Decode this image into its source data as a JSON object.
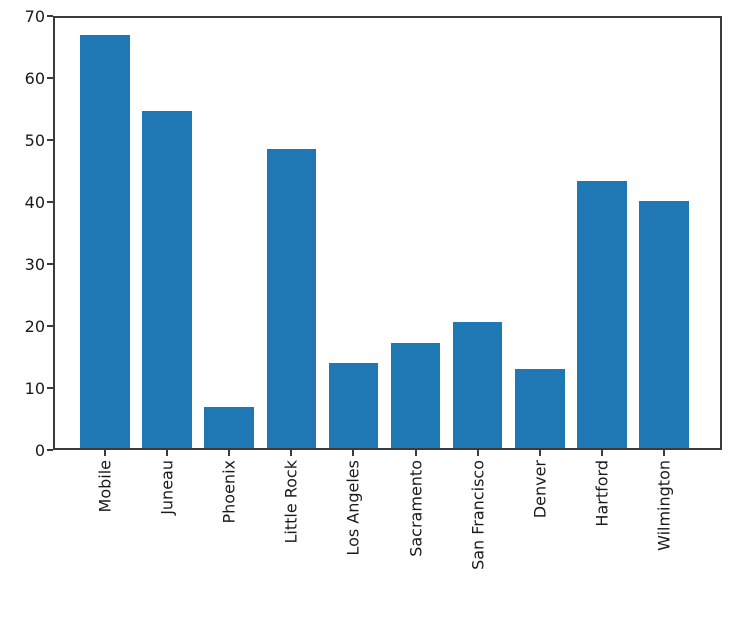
{
  "chart_data": {
    "type": "bar",
    "title": "",
    "xlabel": "",
    "ylabel": "",
    "categories": [
      "Mobile",
      "Juneau",
      "Phoenix",
      "Little Rock",
      "Los Angeles",
      "Sacramento",
      "San Francisco",
      "Denver",
      "Hartford",
      "Wilmington"
    ],
    "values": [
      67.0,
      54.7,
      7.0,
      48.5,
      14.0,
      17.2,
      20.7,
      13.0,
      43.4,
      40.2
    ],
    "ylim": [
      0,
      70
    ],
    "yticks": [
      0,
      10,
      20,
      30,
      40,
      50,
      60,
      70
    ],
    "xtick_rotation_deg": 90,
    "grid": false,
    "legend_position": "none",
    "bar_color": "#1f77b4",
    "axis_color": "#3b3b3b",
    "tick_label_color": "#1a1a1a",
    "background_color": "#ffffff"
  }
}
